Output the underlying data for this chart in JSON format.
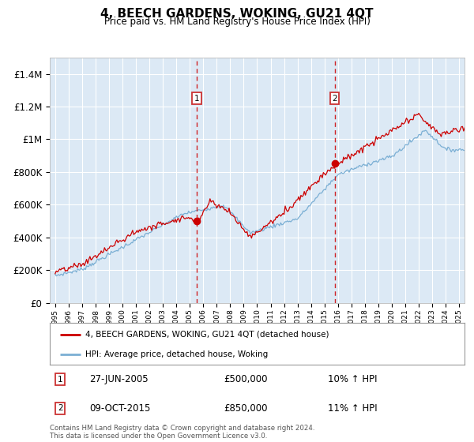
{
  "title": "4, BEECH GARDENS, WOKING, GU21 4QT",
  "subtitle": "Price paid vs. HM Land Registry's House Price Index (HPI)",
  "background_color": "#ffffff",
  "plot_bg_color": "#dce9f5",
  "grid_color": "#ffffff",
  "ylim": [
    0,
    1500000
  ],
  "yticks": [
    0,
    200000,
    400000,
    600000,
    800000,
    1000000,
    1200000,
    1400000
  ],
  "ytick_labels": [
    "£0",
    "£200K",
    "£400K",
    "£600K",
    "£800K",
    "£1M",
    "£1.2M",
    "£1.4M"
  ],
  "x_start_year": 1995,
  "x_end_year": 2025,
  "legend_label_red": "4, BEECH GARDENS, WOKING, GU21 4QT (detached house)",
  "legend_label_blue": "HPI: Average price, detached house, Woking",
  "annotation1_label": "1",
  "annotation1_date": "27-JUN-2005",
  "annotation1_price": "£500,000",
  "annotation1_hpi": "10% ↑ HPI",
  "annotation1_year": 2005.5,
  "annotation1_value": 500000,
  "annotation2_label": "2",
  "annotation2_date": "09-OCT-2015",
  "annotation2_price": "£850,000",
  "annotation2_hpi": "11% ↑ HPI",
  "annotation2_year": 2015.75,
  "annotation2_value": 850000,
  "footer": "Contains HM Land Registry data © Crown copyright and database right 2024.\nThis data is licensed under the Open Government Licence v3.0.",
  "line_color_red": "#cc0000",
  "line_color_blue": "#7bafd4",
  "vline_color": "#cc0000",
  "box_edge_color": "#cc3333",
  "annotation_box_color": "#cc3333"
}
